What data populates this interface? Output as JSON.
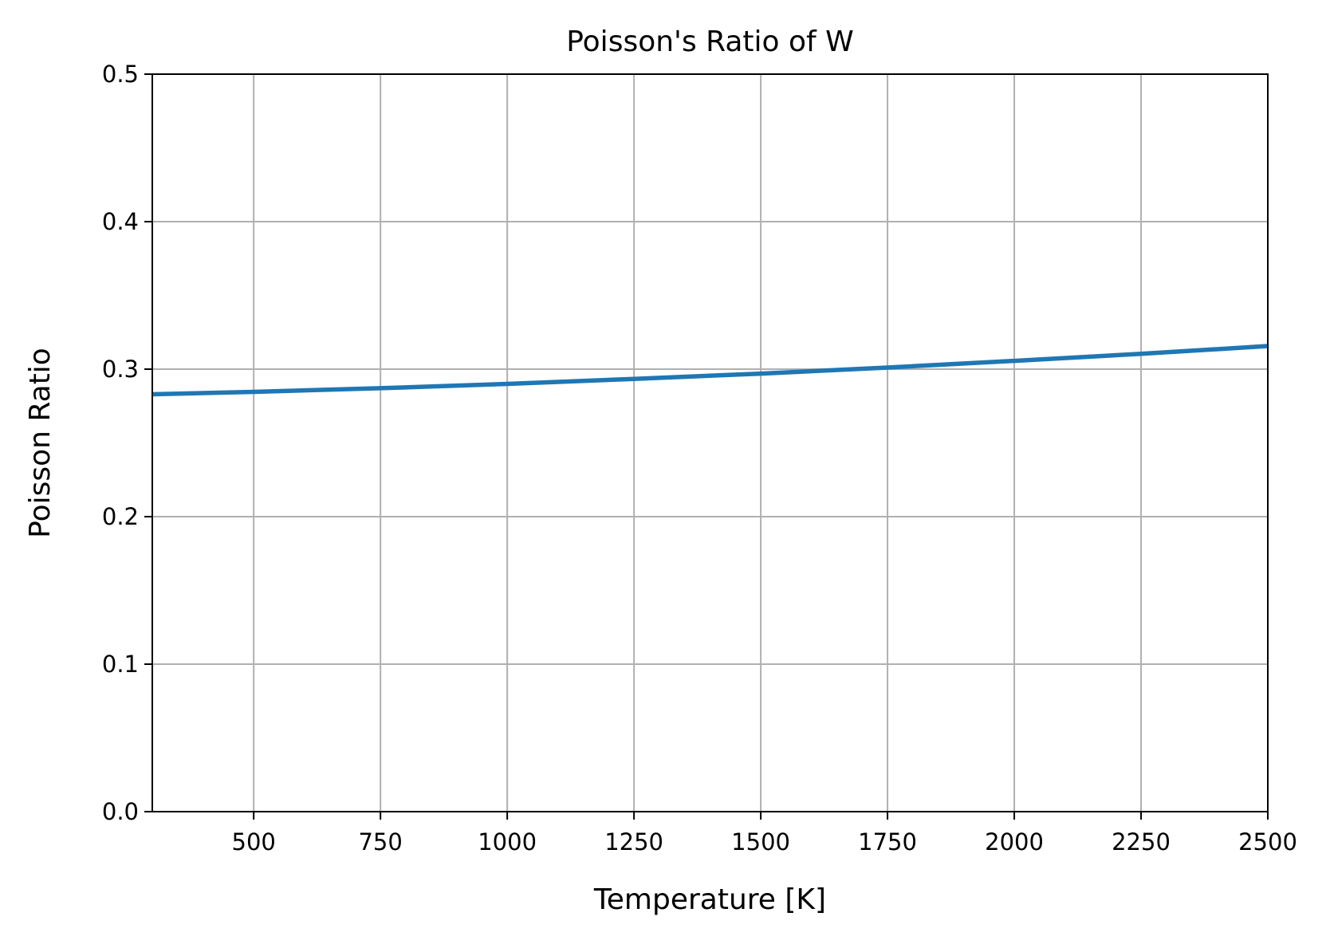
{
  "chart_data": {
    "type": "line",
    "title": "Poisson's Ratio of W",
    "xlabel": "Temperature [K]",
    "ylabel": "Poisson Ratio",
    "xlim": [
      300,
      2500
    ],
    "ylim": [
      0.0,
      0.5
    ],
    "x_ticks": [
      500,
      750,
      1000,
      1250,
      1500,
      1750,
      2000,
      2250,
      2500
    ],
    "x_tick_labels": [
      "500",
      "750",
      "1000",
      "1250",
      "1500",
      "1750",
      "2000",
      "2250",
      "2500"
    ],
    "y_ticks": [
      0.0,
      0.1,
      0.2,
      0.3,
      0.4,
      0.5
    ],
    "y_tick_labels": [
      "0.0",
      "0.1",
      "0.2",
      "0.3",
      "0.4",
      "0.5"
    ],
    "grid": true,
    "series": [
      {
        "color": "#1f77b4",
        "x": [
          300,
          500,
          750,
          1000,
          1250,
          1500,
          1750,
          2000,
          2250,
          2500
        ],
        "y": [
          0.283,
          0.2846,
          0.2871,
          0.29,
          0.2934,
          0.297,
          0.3011,
          0.3056,
          0.3104,
          0.3157
        ]
      }
    ]
  }
}
